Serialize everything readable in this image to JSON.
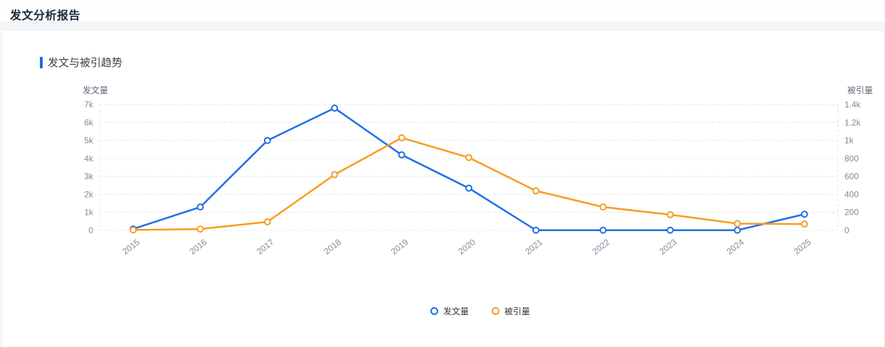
{
  "page": {
    "title": "发文分析报告"
  },
  "section": {
    "title": "发文与被引趋势"
  },
  "chart_data": {
    "type": "line",
    "title": "发文与被引趋势",
    "categories": [
      "2015",
      "2016",
      "2017",
      "2018",
      "2019",
      "2020",
      "2021",
      "2022",
      "2023",
      "2024",
      "2025"
    ],
    "series": [
      {
        "name": "发文量",
        "axis": "left",
        "color": "#1f6ee5",
        "values": [
          80,
          1300,
          5000,
          6800,
          4200,
          2350,
          10,
          10,
          10,
          10,
          900
        ]
      },
      {
        "name": "被引量",
        "axis": "right",
        "color": "#f59d22",
        "values": [
          5,
          15,
          95,
          620,
          1030,
          810,
          440,
          260,
          175,
          75,
          70
        ]
      }
    ],
    "left_axis": {
      "name": "发文量",
      "min": 0,
      "max": 7000,
      "tick_labels": [
        "0",
        "1k",
        "2k",
        "3k",
        "4k",
        "5k",
        "6k",
        "7k"
      ]
    },
    "right_axis": {
      "name": "被引量",
      "min": 0,
      "max": 1400,
      "tick_labels": [
        "0",
        "200",
        "400",
        "600",
        "800",
        "1k",
        "1.2k",
        "1.4k"
      ]
    },
    "legend_position": "bottom",
    "grid": "dashed",
    "x_label_rotation": 38
  },
  "legend": {
    "items": [
      {
        "label": "发文量",
        "color": "#1f6ee5"
      },
      {
        "label": "被引量",
        "color": "#f59d22"
      }
    ]
  },
  "colors": {
    "accent": "#1f6ee5",
    "series_blue": "#1f6ee5",
    "series_orange": "#f59d22",
    "grid_line": "#e4e7ec",
    "tick_text": "#808b99",
    "axis_name_text": "#5f6a79",
    "title_text": "#1c2b3a"
  }
}
